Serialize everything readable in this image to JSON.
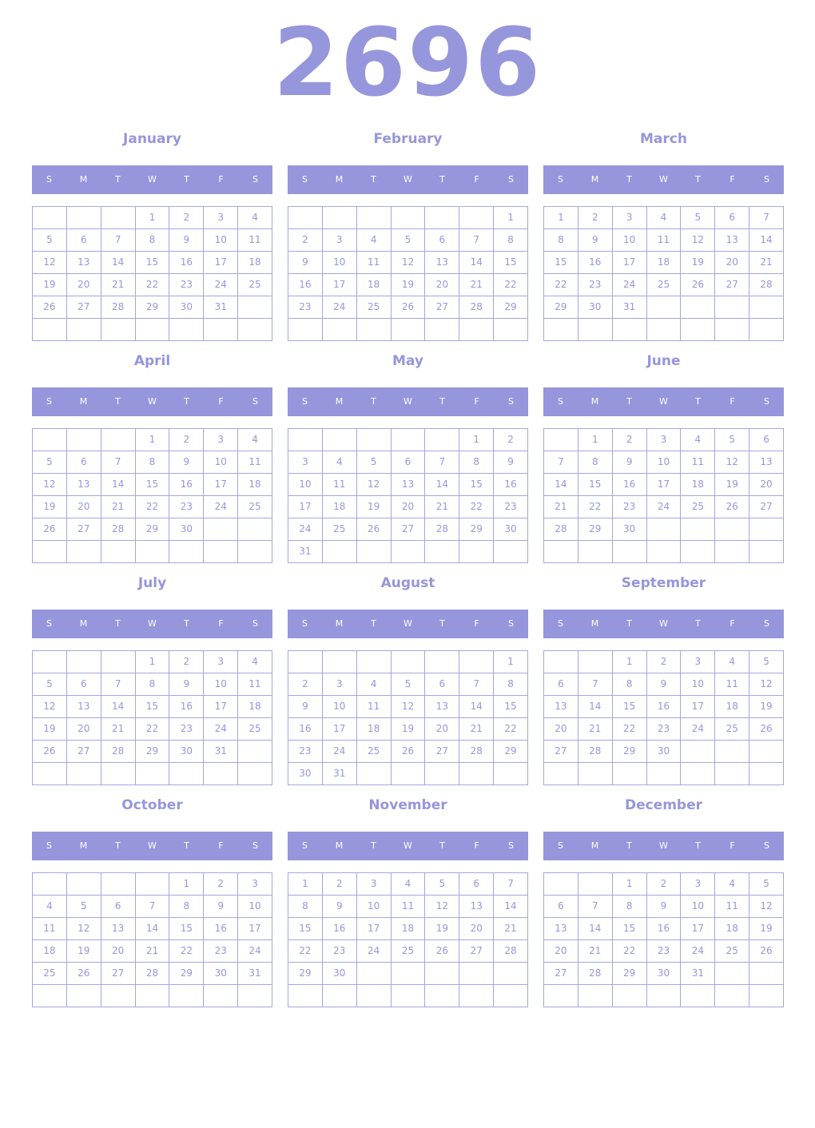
{
  "year": "2696",
  "weekdays": [
    "S",
    "M",
    "T",
    "W",
    "T",
    "F",
    "S"
  ],
  "months": [
    {
      "name": "January",
      "weeks": [
        [
          null,
          null,
          null,
          1,
          2,
          3,
          4
        ],
        [
          5,
          6,
          7,
          8,
          9,
          10,
          11
        ],
        [
          12,
          13,
          14,
          15,
          16,
          17,
          18
        ],
        [
          19,
          20,
          21,
          22,
          23,
          24,
          25
        ],
        [
          26,
          27,
          28,
          29,
          30,
          31,
          null
        ],
        [
          null,
          null,
          null,
          null,
          null,
          null,
          null
        ]
      ]
    },
    {
      "name": "February",
      "weeks": [
        [
          null,
          null,
          null,
          null,
          null,
          null,
          1
        ],
        [
          2,
          3,
          4,
          5,
          6,
          7,
          8
        ],
        [
          9,
          10,
          11,
          12,
          13,
          14,
          15
        ],
        [
          16,
          17,
          18,
          19,
          20,
          21,
          22
        ],
        [
          23,
          24,
          25,
          26,
          27,
          28,
          29
        ],
        [
          null,
          null,
          null,
          null,
          null,
          null,
          null
        ]
      ]
    },
    {
      "name": "March",
      "weeks": [
        [
          1,
          2,
          3,
          4,
          5,
          6,
          7
        ],
        [
          8,
          9,
          10,
          11,
          12,
          13,
          14
        ],
        [
          15,
          16,
          17,
          18,
          19,
          20,
          21
        ],
        [
          22,
          23,
          24,
          25,
          26,
          27,
          28
        ],
        [
          29,
          30,
          31,
          null,
          null,
          null,
          null
        ],
        [
          null,
          null,
          null,
          null,
          null,
          null,
          null
        ]
      ]
    },
    {
      "name": "April",
      "weeks": [
        [
          null,
          null,
          null,
          1,
          2,
          3,
          4
        ],
        [
          5,
          6,
          7,
          8,
          9,
          10,
          11
        ],
        [
          12,
          13,
          14,
          15,
          16,
          17,
          18
        ],
        [
          19,
          20,
          21,
          22,
          23,
          24,
          25
        ],
        [
          26,
          27,
          28,
          29,
          30,
          null,
          null
        ],
        [
          null,
          null,
          null,
          null,
          null,
          null,
          null
        ]
      ]
    },
    {
      "name": "May",
      "weeks": [
        [
          null,
          null,
          null,
          null,
          null,
          1,
          2
        ],
        [
          3,
          4,
          5,
          6,
          7,
          8,
          9
        ],
        [
          10,
          11,
          12,
          13,
          14,
          15,
          16
        ],
        [
          17,
          18,
          19,
          20,
          21,
          22,
          23
        ],
        [
          24,
          25,
          26,
          27,
          28,
          29,
          30
        ],
        [
          31,
          null,
          null,
          null,
          null,
          null,
          null
        ]
      ]
    },
    {
      "name": "June",
      "weeks": [
        [
          null,
          1,
          2,
          3,
          4,
          5,
          6
        ],
        [
          7,
          8,
          9,
          10,
          11,
          12,
          13
        ],
        [
          14,
          15,
          16,
          17,
          18,
          19,
          20
        ],
        [
          21,
          22,
          23,
          24,
          25,
          26,
          27
        ],
        [
          28,
          29,
          30,
          null,
          null,
          null,
          null
        ],
        [
          null,
          null,
          null,
          null,
          null,
          null,
          null
        ]
      ]
    },
    {
      "name": "July",
      "weeks": [
        [
          null,
          null,
          null,
          1,
          2,
          3,
          4
        ],
        [
          5,
          6,
          7,
          8,
          9,
          10,
          11
        ],
        [
          12,
          13,
          14,
          15,
          16,
          17,
          18
        ],
        [
          19,
          20,
          21,
          22,
          23,
          24,
          25
        ],
        [
          26,
          27,
          28,
          29,
          30,
          31,
          null
        ],
        [
          null,
          null,
          null,
          null,
          null,
          null,
          null
        ]
      ]
    },
    {
      "name": "August",
      "weeks": [
        [
          null,
          null,
          null,
          null,
          null,
          null,
          1
        ],
        [
          2,
          3,
          4,
          5,
          6,
          7,
          8
        ],
        [
          9,
          10,
          11,
          12,
          13,
          14,
          15
        ],
        [
          16,
          17,
          18,
          19,
          20,
          21,
          22
        ],
        [
          23,
          24,
          25,
          26,
          27,
          28,
          29
        ],
        [
          30,
          31,
          null,
          null,
          null,
          null,
          null
        ]
      ]
    },
    {
      "name": "September",
      "weeks": [
        [
          null,
          null,
          1,
          2,
          3,
          4,
          5
        ],
        [
          6,
          7,
          8,
          9,
          10,
          11,
          12
        ],
        [
          13,
          14,
          15,
          16,
          17,
          18,
          19
        ],
        [
          20,
          21,
          22,
          23,
          24,
          25,
          26
        ],
        [
          27,
          28,
          29,
          30,
          null,
          null,
          null
        ],
        [
          null,
          null,
          null,
          null,
          null,
          null,
          null
        ]
      ]
    },
    {
      "name": "October",
      "weeks": [
        [
          null,
          null,
          null,
          null,
          1,
          2,
          3
        ],
        [
          4,
          5,
          6,
          7,
          8,
          9,
          10
        ],
        [
          11,
          12,
          13,
          14,
          15,
          16,
          17
        ],
        [
          18,
          19,
          20,
          21,
          22,
          23,
          24
        ],
        [
          25,
          26,
          27,
          28,
          29,
          30,
          31
        ],
        [
          null,
          null,
          null,
          null,
          null,
          null,
          null
        ]
      ]
    },
    {
      "name": "November",
      "weeks": [
        [
          1,
          2,
          3,
          4,
          5,
          6,
          7
        ],
        [
          8,
          9,
          10,
          11,
          12,
          13,
          14
        ],
        [
          15,
          16,
          17,
          18,
          19,
          20,
          21
        ],
        [
          22,
          23,
          24,
          25,
          26,
          27,
          28
        ],
        [
          29,
          30,
          null,
          null,
          null,
          null,
          null
        ],
        [
          null,
          null,
          null,
          null,
          null,
          null,
          null
        ]
      ]
    },
    {
      "name": "December",
      "weeks": [
        [
          null,
          null,
          1,
          2,
          3,
          4,
          5
        ],
        [
          6,
          7,
          8,
          9,
          10,
          11,
          12
        ],
        [
          13,
          14,
          15,
          16,
          17,
          18,
          19
        ],
        [
          20,
          21,
          22,
          23,
          24,
          25,
          26
        ],
        [
          27,
          28,
          29,
          30,
          31,
          null,
          null
        ],
        [
          null,
          null,
          null,
          null,
          null,
          null,
          null
        ]
      ]
    }
  ]
}
